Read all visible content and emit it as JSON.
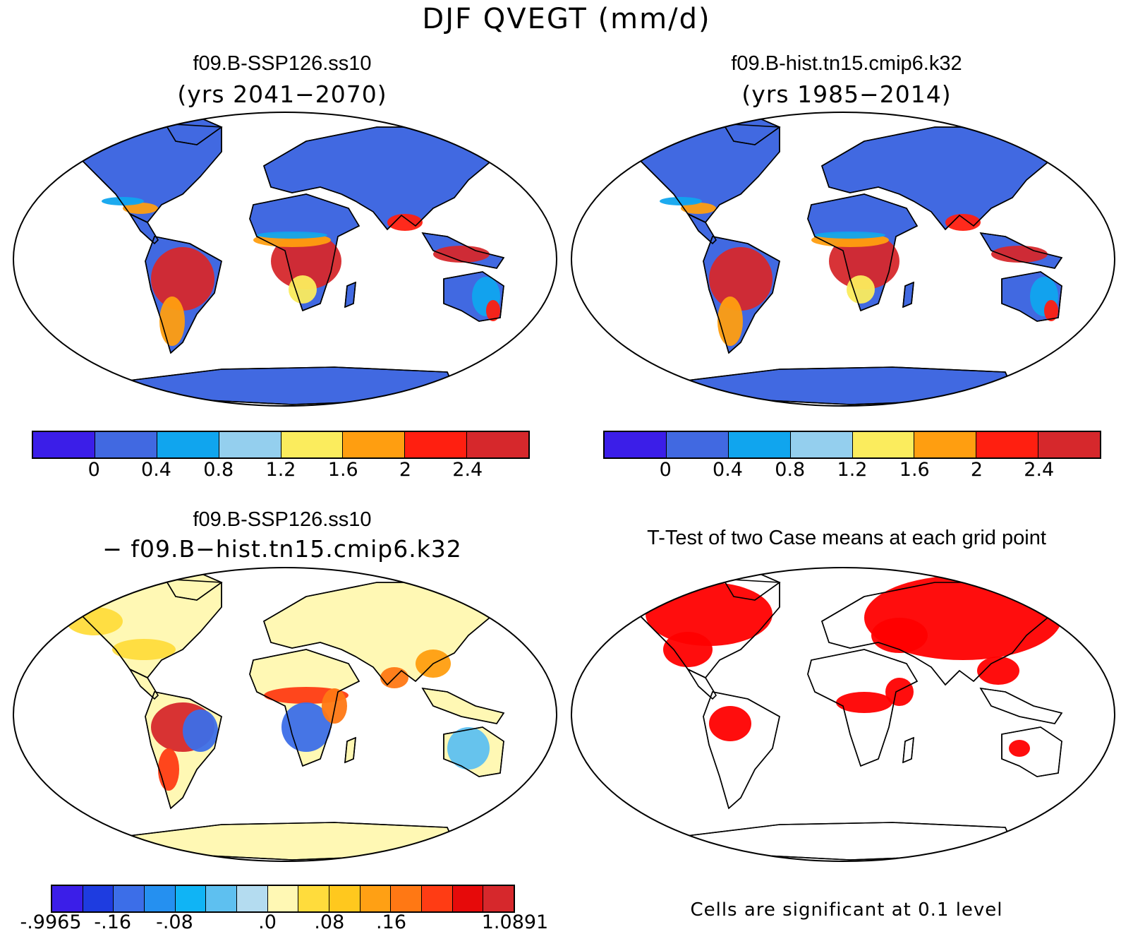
{
  "figure": {
    "title": "DJF QVEGT (mm/d)"
  },
  "panels": [
    {
      "id": "ssp126",
      "title": "f09.B-SSP126.ss10",
      "subtitle": "(yrs 2041−2070)",
      "colorbar": {
        "colors": [
          "#3b1ee8",
          "#4169e1",
          "#10a5ee",
          "#94cfee",
          "#fbec5d",
          "#ff9e10",
          "#ff1f10",
          "#d6282c"
        ],
        "ticks": [
          "0",
          "0.4",
          "0.8",
          "1.2",
          "1.6",
          "2",
          "2.4"
        ]
      }
    },
    {
      "id": "hist",
      "title": "f09.B-hist.tn15.cmip6.k32",
      "subtitle": "(yrs 1985−2014)",
      "colorbar": {
        "colors": [
          "#3b1ee8",
          "#4169e1",
          "#10a5ee",
          "#94cfee",
          "#fbec5d",
          "#ff9e10",
          "#ff1f10",
          "#d6282c"
        ],
        "ticks": [
          "0",
          "0.4",
          "0.8",
          "1.2",
          "1.6",
          "2",
          "2.4"
        ]
      }
    },
    {
      "id": "diff",
      "title": "f09.B-SSP126.ss10",
      "subtitle": "− f09.B−hist.tn15.cmip6.k32",
      "colorbar": {
        "colors": [
          "#3b1ee8",
          "#1e3ce0",
          "#3c6ee8",
          "#2590f0",
          "#10b4f5",
          "#5ec0f0",
          "#b4dcf0",
          "#fff8b4",
          "#ffdc3c",
          "#ffc81e",
          "#ffa014",
          "#ff7814",
          "#ff3c14",
          "#e60a0a",
          "#d6282c"
        ],
        "ticks": [
          "-.9965",
          "-.16",
          "-.08",
          ".0",
          ".08",
          ".16",
          "1.0891"
        ]
      }
    },
    {
      "id": "ttest",
      "title": "T-Test of two Case means at each grid point",
      "note": "Cells are significant at 0.1 level"
    }
  ]
}
